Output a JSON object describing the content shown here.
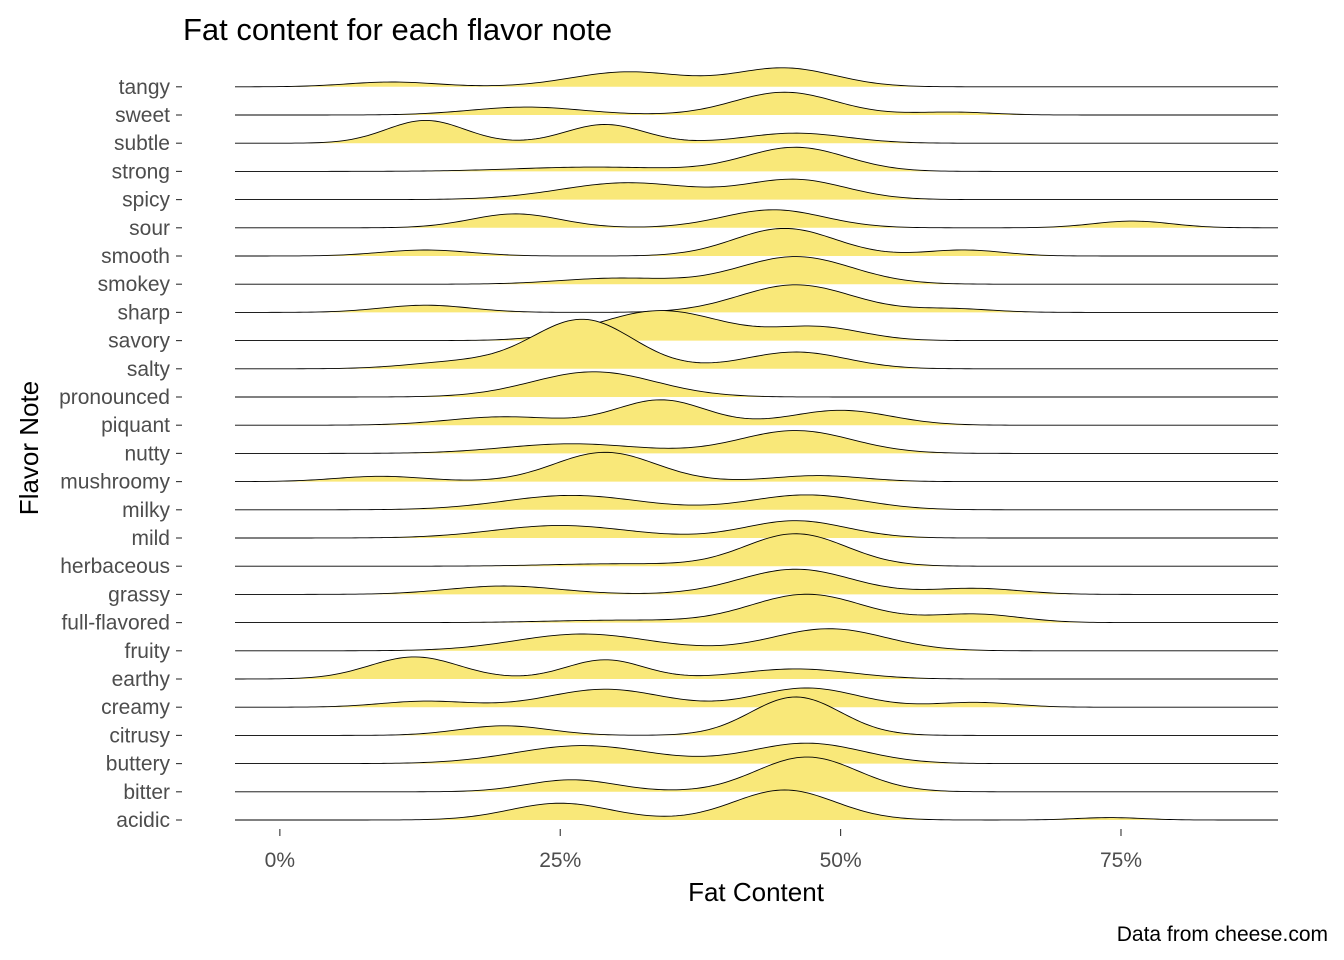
{
  "chart_data": {
    "type": "ridgeline",
    "title": "Fat content for each flavor note",
    "xlabel": "Fat Content",
    "ylabel": "Flavor Note",
    "caption": "Data from cheese.com",
    "x_ticks": [
      0,
      0.25,
      0.5,
      0.75
    ],
    "x_tick_labels": [
      "0%",
      "25%",
      "50%",
      "75%"
    ],
    "xlim": [
      -0.04,
      0.89
    ],
    "fill_color": "#F9E879",
    "line_color": "#000000",
    "grid": false,
    "series": [
      {
        "name": "tangy",
        "range": [
          -0.04,
          0.89
        ],
        "peaks": [
          [
            0.1,
            0.04,
            0.2
          ],
          [
            0.31,
            0.05,
            0.62
          ],
          [
            0.45,
            0.045,
            0.78
          ]
        ]
      },
      {
        "name": "sweet",
        "range": [
          -0.04,
          0.89
        ],
        "peaks": [
          [
            0.22,
            0.05,
            0.33
          ],
          [
            0.45,
            0.045,
            0.95
          ],
          [
            0.6,
            0.035,
            0.12
          ]
        ]
      },
      {
        "name": "subtle",
        "range": [
          -0.04,
          0.89
        ],
        "peaks": [
          [
            0.13,
            0.035,
            0.95
          ],
          [
            0.29,
            0.035,
            0.78
          ],
          [
            0.46,
            0.045,
            0.42
          ]
        ]
      },
      {
        "name": "strong",
        "range": [
          -0.04,
          0.89
        ],
        "peaks": [
          [
            0.28,
            0.07,
            0.18
          ],
          [
            0.46,
            0.045,
            1.0
          ]
        ]
      },
      {
        "name": "spicy",
        "range": [
          -0.04,
          0.89
        ],
        "peaks": [
          [
            0.31,
            0.06,
            0.7
          ],
          [
            0.46,
            0.045,
            0.82
          ]
        ]
      },
      {
        "name": "sour",
        "range": [
          -0.04,
          0.89
        ],
        "peaks": [
          [
            0.21,
            0.04,
            0.58
          ],
          [
            0.44,
            0.045,
            0.75
          ],
          [
            0.76,
            0.035,
            0.28
          ]
        ]
      },
      {
        "name": "smooth",
        "range": [
          -0.04,
          0.89
        ],
        "peaks": [
          [
            0.13,
            0.04,
            0.25
          ],
          [
            0.45,
            0.045,
            1.15
          ],
          [
            0.61,
            0.035,
            0.25
          ]
        ]
      },
      {
        "name": "smokey",
        "range": [
          -0.04,
          0.89
        ],
        "peaks": [
          [
            0.3,
            0.05,
            0.25
          ],
          [
            0.46,
            0.05,
            1.15
          ]
        ]
      },
      {
        "name": "sharp",
        "range": [
          -0.04,
          0.89
        ],
        "peaks": [
          [
            0.13,
            0.04,
            0.3
          ],
          [
            0.46,
            0.05,
            1.15
          ],
          [
            0.6,
            0.035,
            0.15
          ]
        ]
      },
      {
        "name": "savory",
        "range": [
          -0.04,
          0.89
        ],
        "peaks": [
          [
            0.34,
            0.055,
            1.25
          ],
          [
            0.48,
            0.04,
            0.55
          ]
        ]
      },
      {
        "name": "salty",
        "range": [
          -0.04,
          0.89
        ],
        "peaks": [
          [
            0.16,
            0.045,
            0.28
          ],
          [
            0.27,
            0.045,
            2.05
          ],
          [
            0.46,
            0.045,
            0.7
          ]
        ]
      },
      {
        "name": "pronounced",
        "range": [
          -0.04,
          0.89
        ],
        "peaks": [
          [
            0.28,
            0.055,
            1.05
          ]
        ]
      },
      {
        "name": "piquant",
        "range": [
          -0.04,
          0.89
        ],
        "peaks": [
          [
            0.2,
            0.05,
            0.35
          ],
          [
            0.34,
            0.04,
            1.05
          ],
          [
            0.5,
            0.045,
            0.62
          ]
        ]
      },
      {
        "name": "nutty",
        "range": [
          -0.04,
          0.89
        ],
        "peaks": [
          [
            0.26,
            0.06,
            0.4
          ],
          [
            0.46,
            0.05,
            0.95
          ]
        ]
      },
      {
        "name": "mushroomy",
        "range": [
          -0.04,
          0.89
        ],
        "peaks": [
          [
            0.09,
            0.04,
            0.22
          ],
          [
            0.29,
            0.045,
            1.22
          ],
          [
            0.48,
            0.04,
            0.25
          ]
        ]
      },
      {
        "name": "milky",
        "range": [
          -0.04,
          0.89
        ],
        "peaks": [
          [
            0.26,
            0.06,
            0.6
          ],
          [
            0.47,
            0.05,
            0.62
          ]
        ]
      },
      {
        "name": "mild",
        "range": [
          -0.04,
          0.89
        ],
        "peaks": [
          [
            0.25,
            0.06,
            0.52
          ],
          [
            0.46,
            0.045,
            0.72
          ]
        ]
      },
      {
        "name": "herbaceous",
        "range": [
          -0.04,
          0.89
        ],
        "peaks": [
          [
            0.3,
            0.06,
            0.1
          ],
          [
            0.46,
            0.045,
            1.35
          ]
        ]
      },
      {
        "name": "grassy",
        "range": [
          -0.04,
          0.89
        ],
        "peaks": [
          [
            0.2,
            0.05,
            0.35
          ],
          [
            0.46,
            0.05,
            1.05
          ],
          [
            0.62,
            0.04,
            0.25
          ]
        ]
      },
      {
        "name": "full-flavored",
        "range": [
          -0.04,
          0.89
        ],
        "peaks": [
          [
            0.3,
            0.06,
            0.1
          ],
          [
            0.47,
            0.05,
            1.18
          ],
          [
            0.62,
            0.04,
            0.35
          ]
        ]
      },
      {
        "name": "fruity",
        "range": [
          -0.04,
          0.89
        ],
        "peaks": [
          [
            0.27,
            0.06,
            0.7
          ],
          [
            0.49,
            0.05,
            0.92
          ]
        ]
      },
      {
        "name": "earthy",
        "range": [
          -0.04,
          0.89
        ],
        "peaks": [
          [
            0.12,
            0.04,
            0.92
          ],
          [
            0.29,
            0.035,
            0.8
          ],
          [
            0.46,
            0.05,
            0.42
          ]
        ]
      },
      {
        "name": "creamy",
        "range": [
          -0.04,
          0.89
        ],
        "peaks": [
          [
            0.13,
            0.04,
            0.25
          ],
          [
            0.29,
            0.05,
            0.75
          ],
          [
            0.47,
            0.045,
            0.8
          ],
          [
            0.62,
            0.035,
            0.2
          ]
        ]
      },
      {
        "name": "citrusy",
        "range": [
          -0.04,
          0.89
        ],
        "peaks": [
          [
            0.2,
            0.04,
            0.4
          ],
          [
            0.46,
            0.04,
            1.6
          ]
        ]
      },
      {
        "name": "buttery",
        "range": [
          -0.04,
          0.89
        ],
        "peaks": [
          [
            0.27,
            0.06,
            0.75
          ],
          [
            0.47,
            0.05,
            0.85
          ]
        ]
      },
      {
        "name": "bitter",
        "range": [
          -0.04,
          0.89
        ],
        "peaks": [
          [
            0.26,
            0.04,
            0.5
          ],
          [
            0.47,
            0.045,
            1.45
          ]
        ]
      },
      {
        "name": "acidic",
        "range": [
          -0.04,
          0.89
        ],
        "peaks": [
          [
            0.25,
            0.045,
            0.7
          ],
          [
            0.45,
            0.045,
            1.25
          ],
          [
            0.74,
            0.03,
            0.1
          ]
        ]
      }
    ]
  }
}
